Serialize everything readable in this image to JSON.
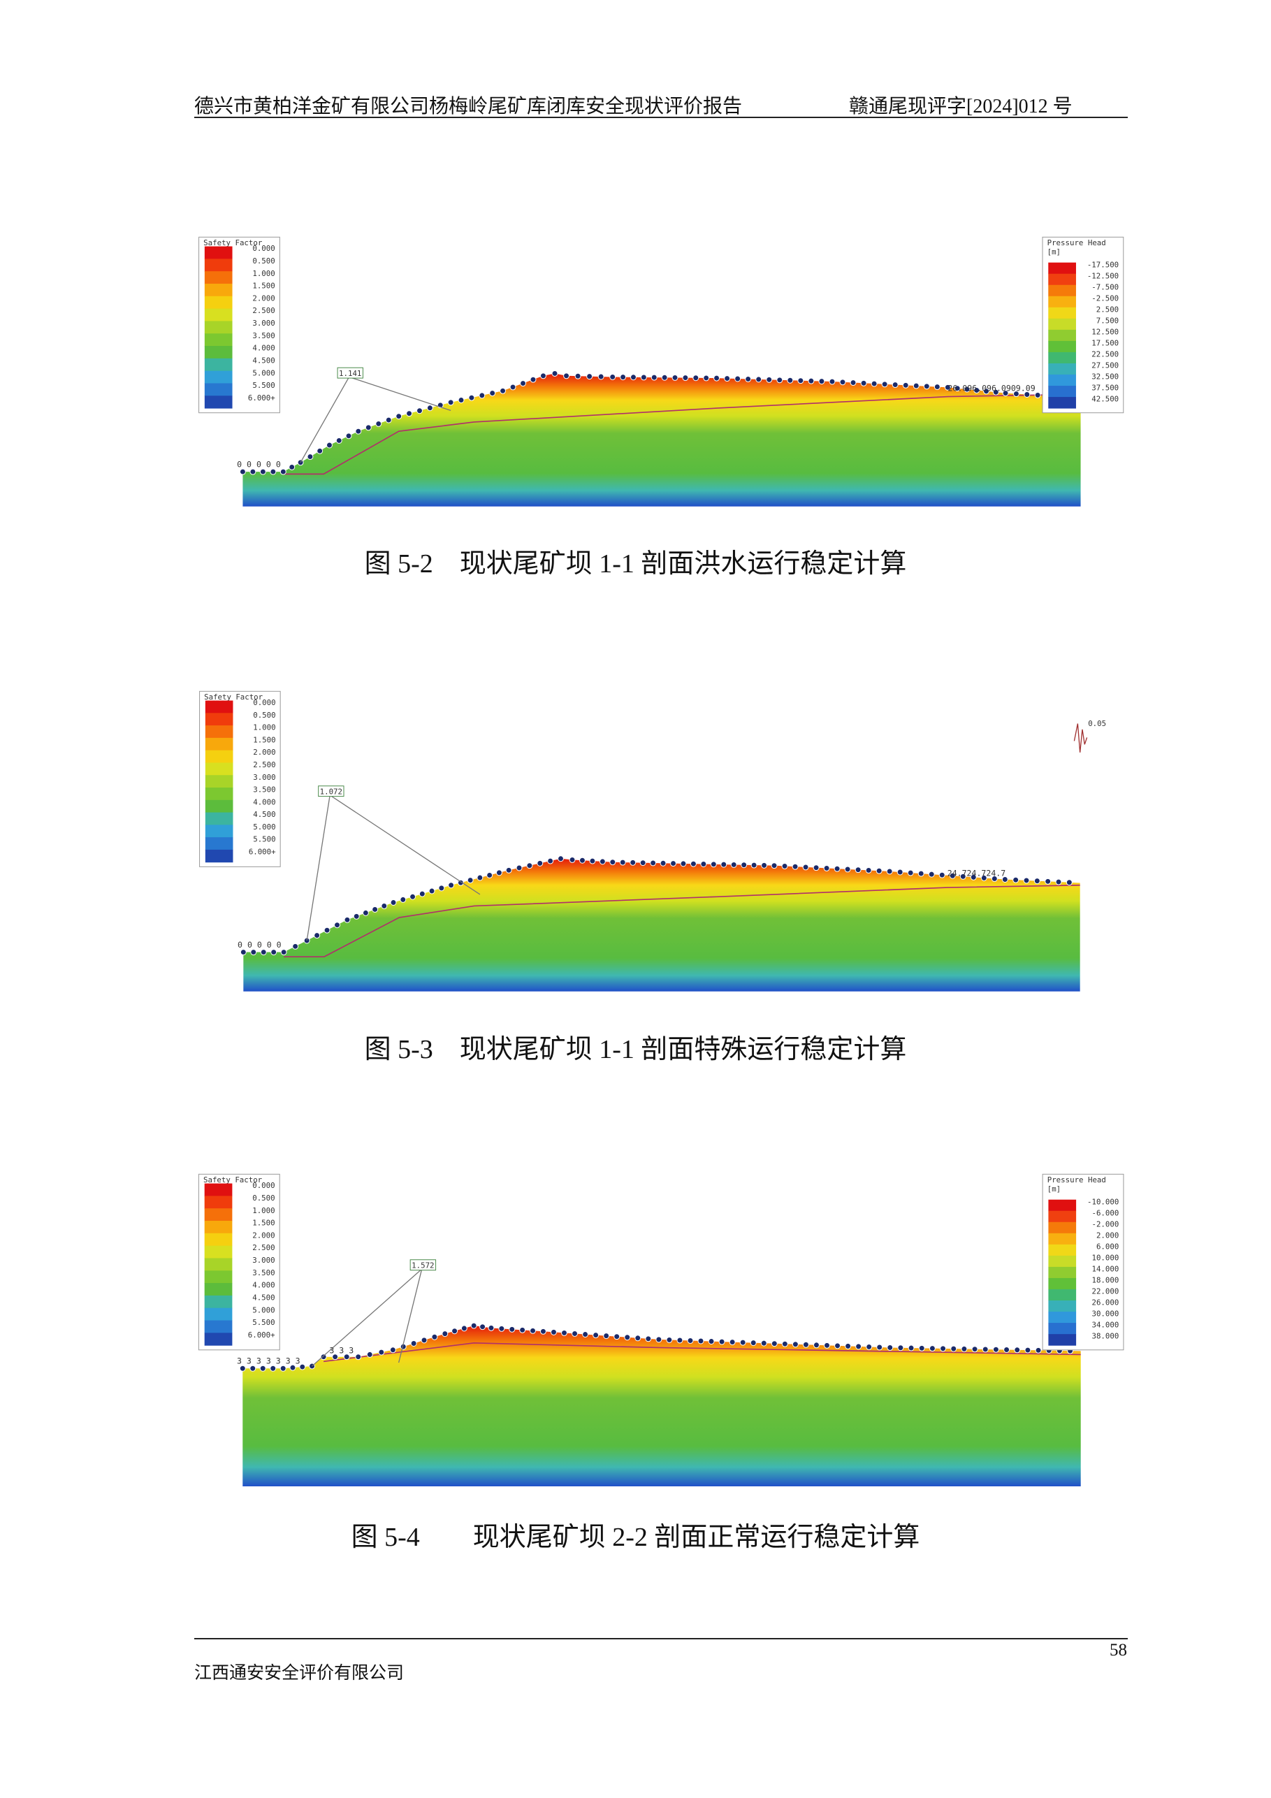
{
  "header": {
    "left": "德兴市黄柏洋金矿有限公司杨梅岭尾矿库闭库安全现状评价报告",
    "right": "赣通尾现评字[2024]012 号"
  },
  "figures": [
    {
      "caption": "图 5-2　现状尾矿坝 1-1 剖面洪水运行稳定计算",
      "factor": "1.141",
      "toe_label": "0  0 0 0 0",
      "crest_label": "26.096.096.0909.09",
      "safety_legend": {
        "title": "Safety Factor",
        "labels": [
          "0.000",
          "0.500",
          "1.000",
          "1.500",
          "2.000",
          "2.500",
          "3.000",
          "3.500",
          "4.000",
          "4.500",
          "5.000",
          "5.500",
          "6.000+"
        ]
      },
      "pressure_legend": {
        "title": "Pressure Head",
        "unit": "[m]",
        "labels": [
          "-17.500",
          "-12.500",
          "-7.500",
          "-2.500",
          "2.500",
          "7.500",
          "12.500",
          "17.500",
          "22.500",
          "27.500",
          "32.500",
          "37.500",
          "42.500"
        ]
      }
    },
    {
      "caption": "图 5-3　现状尾矿坝 1-1 剖面特殊运行稳定计算",
      "factor": "1.072",
      "toe_label": "0  0 0 0 0",
      "crest_label": "24.724.724.7",
      "seismic": "0.05",
      "safety_legend": {
        "title": "Safety Factor",
        "labels": [
          "0.000",
          "0.500",
          "1.000",
          "1.500",
          "2.000",
          "2.500",
          "3.000",
          "3.500",
          "4.000",
          "4.500",
          "5.000",
          "5.500",
          "6.000+"
        ]
      }
    },
    {
      "caption": "图 5-4　　现状尾矿坝 2-2 剖面正常运行稳定计算",
      "factor": "1.572",
      "toe_label": "3   3   3   3 3 3 3",
      "crest_label": "3  3  3",
      "safety_legend": {
        "title": "Safety Factor",
        "labels": [
          "0.000",
          "0.500",
          "1.000",
          "1.500",
          "2.000",
          "2.500",
          "3.000",
          "3.500",
          "4.000",
          "4.500",
          "5.000",
          "5.500",
          "6.000+"
        ]
      },
      "pressure_legend": {
        "title": "Pressure Head",
        "unit": "[m]",
        "labels": [
          "-10.000",
          "-6.000",
          "-2.000",
          "2.000",
          "6.000",
          "10.000",
          "14.000",
          "18.000",
          "22.000",
          "26.000",
          "30.000",
          "34.000",
          "38.000"
        ]
      }
    }
  ],
  "footer": {
    "company": "江西通安安全评价有限公司",
    "page": "58"
  }
}
